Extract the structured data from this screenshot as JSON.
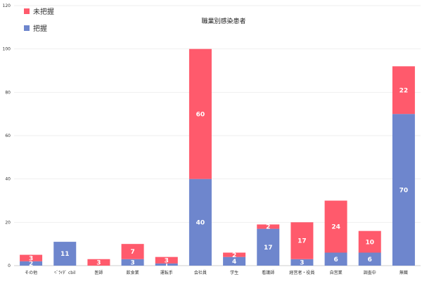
{
  "chart_data": {
    "type": "bar",
    "stacked": true,
    "title": "職業別感染患者",
    "xlabel": "",
    "ylabel": "",
    "ylim": [
      0,
      120
    ],
    "yticks": [
      0,
      20,
      40,
      60,
      80,
      100,
      120
    ],
    "grid": "horizontal",
    "legend": "top-left",
    "categories": [
      "その他",
      "ﾍﾞﾗｲﾀﾞ cbil",
      "医師",
      "飲食業",
      "運転手",
      "会社員",
      "学生",
      "看護師",
      "経営者・役員",
      "自営業",
      "調査中",
      "無職"
    ],
    "series": [
      {
        "name": "把握",
        "color": "#6e86cd",
        "values": [
          2,
          11,
          0,
          3,
          1,
          40,
          4,
          17,
          3,
          6,
          6,
          70
        ],
        "labels": [
          "2",
          "11",
          "",
          "3",
          "1",
          "40",
          "4",
          "17",
          "3",
          "6",
          "6",
          "70"
        ]
      },
      {
        "name": "未把握",
        "color": "#ff5a6c",
        "values": [
          3,
          0,
          3,
          7,
          3,
          60,
          2,
          2,
          17,
          24,
          10,
          22
        ],
        "labels": [
          "3",
          "",
          "3",
          "7",
          "3",
          "60",
          "2",
          "2",
          "17",
          "24",
          "10",
          "22"
        ]
      }
    ]
  }
}
